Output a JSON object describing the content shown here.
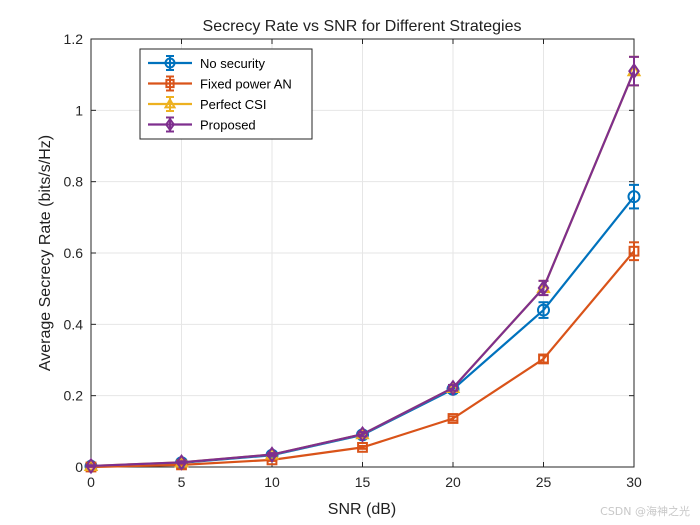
{
  "chart_data": {
    "type": "line",
    "title": "Secrecy Rate vs SNR for Different Strategies",
    "xlabel": "SNR (dB)",
    "ylabel": "Average Secrecy Rate (bits/s/Hz)",
    "xlim": [
      0,
      30
    ],
    "ylim": [
      0,
      1.2
    ],
    "xticks": [
      0,
      5,
      10,
      15,
      20,
      25,
      30
    ],
    "yticks": [
      0,
      0.2,
      0.4,
      0.6,
      0.8,
      1,
      1.2
    ],
    "grid": true,
    "legend_location": "top-left",
    "x": [
      0,
      5,
      10,
      15,
      20,
      25,
      30
    ],
    "series": [
      {
        "name": "No security",
        "color": "#0072BD",
        "marker": "circle",
        "values": [
          0.002,
          0.012,
          0.033,
          0.09,
          0.218,
          0.44,
          0.758
        ],
        "error": [
          0.002,
          0.003,
          0.004,
          0.006,
          0.01,
          0.022,
          0.033
        ]
      },
      {
        "name": "Fixed power AN",
        "color": "#D95319",
        "marker": "square",
        "values": [
          0.0,
          0.006,
          0.02,
          0.055,
          0.136,
          0.303,
          0.605
        ],
        "error": [
          0.001,
          0.002,
          0.003,
          0.004,
          0.006,
          0.01,
          0.025
        ]
      },
      {
        "name": "Perfect CSI",
        "color": "#EDB120",
        "marker": "triangle",
        "values": [
          0.003,
          0.013,
          0.035,
          0.092,
          0.222,
          0.502,
          1.11
        ],
        "error": [
          0.002,
          0.003,
          0.004,
          0.006,
          0.008,
          0.02,
          0.04
        ]
      },
      {
        "name": "Proposed",
        "color": "#7E2F8E",
        "marker": "diamond",
        "values": [
          0.003,
          0.013,
          0.035,
          0.092,
          0.222,
          0.502,
          1.11
        ],
        "error": [
          0.002,
          0.003,
          0.004,
          0.006,
          0.008,
          0.02,
          0.04
        ]
      }
    ]
  },
  "watermark": "CSDN @海神之光"
}
